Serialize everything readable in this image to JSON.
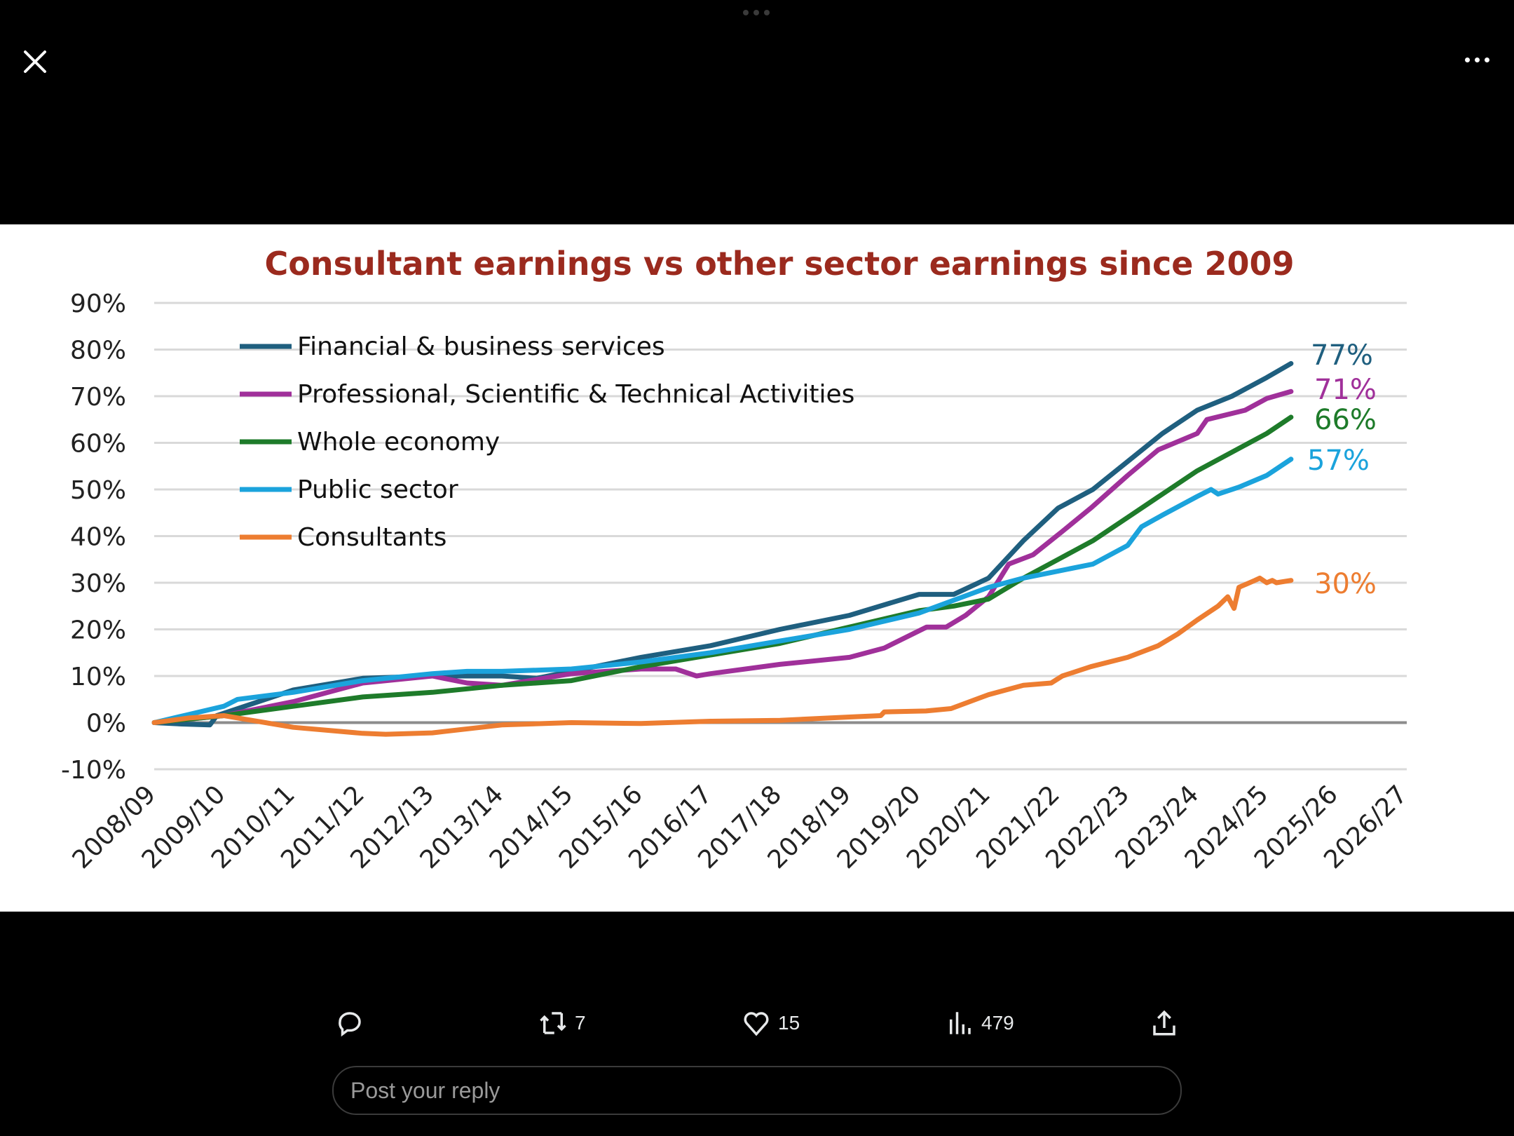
{
  "header": {
    "close_icon": "close-icon",
    "more_icon": "more-horizontal-icon"
  },
  "chart_data": {
    "type": "line",
    "title": "Consultant earnings vs other sector earnings since 2009",
    "xlabel": "",
    "ylabel": "",
    "x_ticks": [
      "2008/09",
      "2009/10",
      "2010/11",
      "2011/12",
      "2012/13",
      "2013/14",
      "2014/15",
      "2015/16",
      "2016/17",
      "2017/18",
      "2018/19",
      "2019/20",
      "2020/21",
      "2021/22",
      "2022/23",
      "2023/24",
      "2024/25",
      "2025/26",
      "2026/27"
    ],
    "y_ticks": [
      "90%",
      "80%",
      "70%",
      "60%",
      "50%",
      "40%",
      "30%",
      "20%",
      "10%",
      "0%",
      "-10%"
    ],
    "ylim": [
      -10,
      90
    ],
    "x_unit": "years since 2008/09",
    "grid": true,
    "legend_position": "top-left",
    "series": [
      {
        "name": "Financial & business services",
        "color": "#1f5f7f",
        "end_label": "77%",
        "points": [
          [
            0,
            0
          ],
          [
            0.4,
            -0.3
          ],
          [
            0.8,
            -0.5
          ],
          [
            0.9,
            1.5
          ],
          [
            1,
            2
          ],
          [
            2,
            7
          ],
          [
            3,
            9.5
          ],
          [
            4,
            10
          ],
          [
            5,
            10
          ],
          [
            5.5,
            9.5
          ],
          [
            6,
            11
          ],
          [
            7,
            14
          ],
          [
            8,
            16.5
          ],
          [
            9,
            20
          ],
          [
            10,
            23
          ],
          [
            11,
            27.5
          ],
          [
            11.5,
            27.5
          ],
          [
            12,
            31
          ],
          [
            12.5,
            39
          ],
          [
            13,
            46
          ],
          [
            13.5,
            50
          ],
          [
            14,
            56
          ],
          [
            14.5,
            62
          ],
          [
            15,
            67
          ],
          [
            15.5,
            70
          ],
          [
            16,
            74
          ],
          [
            16.35,
            77
          ]
        ]
      },
      {
        "name": "Professional, Scientific & Technical Activities",
        "color": "#a0309a",
        "end_label": "71%",
        "points": [
          [
            0,
            0
          ],
          [
            1,
            1.5
          ],
          [
            2,
            4.5
          ],
          [
            3,
            8.5
          ],
          [
            4,
            10
          ],
          [
            4.5,
            8.5
          ],
          [
            5,
            8
          ],
          [
            6,
            10.5
          ],
          [
            7,
            11.5
          ],
          [
            7.5,
            11.5
          ],
          [
            7.8,
            10
          ],
          [
            8,
            10.5
          ],
          [
            9,
            12.5
          ],
          [
            10,
            14
          ],
          [
            10.5,
            16
          ],
          [
            11.11,
            20.5
          ],
          [
            11.39,
            20.5
          ],
          [
            11.67,
            23
          ],
          [
            12,
            27
          ],
          [
            12.29,
            34
          ],
          [
            12.64,
            36
          ],
          [
            13.06,
            41
          ],
          [
            13.47,
            46
          ],
          [
            14,
            53
          ],
          [
            14.44,
            58.5
          ],
          [
            15,
            62
          ],
          [
            15.14,
            65
          ],
          [
            15.69,
            67
          ],
          [
            16,
            69.5
          ],
          [
            16.35,
            71
          ]
        ]
      },
      {
        "name": "Whole economy",
        "color": "#1e7b2a",
        "end_label": "66%",
        "points": [
          [
            0,
            0
          ],
          [
            1,
            1.5
          ],
          [
            2,
            3.5
          ],
          [
            3,
            5.5
          ],
          [
            4,
            6.5
          ],
          [
            5,
            8
          ],
          [
            6,
            9
          ],
          [
            7,
            12
          ],
          [
            8,
            14.5
          ],
          [
            9,
            17
          ],
          [
            10,
            20.5
          ],
          [
            11,
            24
          ],
          [
            11.5,
            25
          ],
          [
            12,
            26.5
          ],
          [
            12.5,
            31
          ],
          [
            13,
            35
          ],
          [
            13.5,
            39
          ],
          [
            14,
            44
          ],
          [
            14.5,
            49
          ],
          [
            15,
            54
          ],
          [
            15.5,
            58
          ],
          [
            16,
            62
          ],
          [
            16.35,
            65.5
          ]
        ]
      },
      {
        "name": "Public sector",
        "color": "#1ba3dc",
        "end_label": "57%",
        "points": [
          [
            0,
            0
          ],
          [
            1,
            3.5
          ],
          [
            1.2,
            5
          ],
          [
            2,
            6.5
          ],
          [
            3,
            9
          ],
          [
            4,
            10.5
          ],
          [
            4.5,
            11
          ],
          [
            5,
            11
          ],
          [
            6,
            11.5
          ],
          [
            7,
            13
          ],
          [
            8,
            15
          ],
          [
            9,
            17.5
          ],
          [
            10,
            20
          ],
          [
            11,
            23.5
          ],
          [
            12,
            29
          ],
          [
            12.5,
            31
          ],
          [
            13,
            32.5
          ],
          [
            13.5,
            34
          ],
          [
            14,
            38
          ],
          [
            14.2,
            42
          ],
          [
            14.5,
            44.5
          ],
          [
            15,
            48.5
          ],
          [
            15.2,
            50
          ],
          [
            15.3,
            49
          ],
          [
            15.6,
            50.5
          ],
          [
            16,
            53
          ],
          [
            16.35,
            56.5
          ]
        ]
      },
      {
        "name": "Consultants",
        "color": "#ed7d31",
        "end_label": "30%",
        "points": [
          [
            0,
            0
          ],
          [
            0.5,
            1
          ],
          [
            1,
            1.5
          ],
          [
            1.4,
            0.5
          ],
          [
            2,
            -1
          ],
          [
            3,
            -2.3
          ],
          [
            3.33,
            -2.5
          ],
          [
            4,
            -2.2
          ],
          [
            5,
            -0.5
          ],
          [
            6,
            0
          ],
          [
            7,
            -0.2
          ],
          [
            8,
            0.3
          ],
          [
            9,
            0.5
          ],
          [
            10,
            1.2
          ],
          [
            10.45,
            1.5
          ],
          [
            10.5,
            2.3
          ],
          [
            11.1,
            2.5
          ],
          [
            11.46,
            3
          ],
          [
            12,
            6
          ],
          [
            12.5,
            8
          ],
          [
            12.9,
            8.5
          ],
          [
            13.06,
            10
          ],
          [
            13.47,
            12
          ],
          [
            14,
            14
          ],
          [
            14.44,
            16.5
          ],
          [
            14.72,
            19
          ],
          [
            15,
            22
          ],
          [
            15.3,
            25
          ],
          [
            15.44,
            27
          ],
          [
            15.53,
            24.5
          ],
          [
            15.6,
            29
          ],
          [
            15.83,
            30.5
          ],
          [
            15.9,
            31
          ],
          [
            16,
            30
          ],
          [
            16.08,
            30.5
          ],
          [
            16.14,
            30
          ],
          [
            16.35,
            30.5
          ]
        ]
      }
    ]
  },
  "actions": {
    "reply_icon": "comment-icon",
    "retweet_count": "7",
    "like_count": "15",
    "views_count": "479",
    "share_icon": "share-icon"
  },
  "reply": {
    "placeholder": "Post your reply"
  }
}
